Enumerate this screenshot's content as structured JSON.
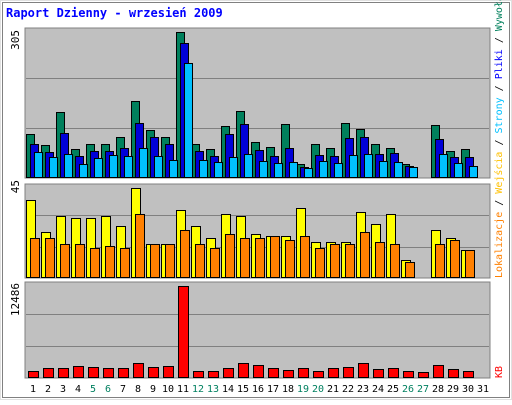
{
  "title": "Raport Dzienny -  wrzesień 2009",
  "colors": {
    "frame": "#e0e0e0",
    "panel": "#c0c0c0",
    "title": "#0000ff",
    "grid": "#808080",
    "wizyty": "#00805c",
    "strony": "#0000d8",
    "pliki": "#00c0ff",
    "wejscia": "#ffff00",
    "lokalizacje": "#ff8000",
    "kb": "#ff0000",
    "label_pliki": "#0000ff",
    "label_wejscia": "#ffc000",
    "label_lokalizacje": "#ff8000",
    "label_strony": "#00c0ff",
    "label_wywolania": "#00805c",
    "day_black": "#000000",
    "day_green": "#008060"
  },
  "chart_data": [
    {
      "type": "bar",
      "panel": "top",
      "y_max_label": "305",
      "ylim": [
        0,
        305
      ],
      "right_labels": [
        "Wywołania",
        "Pliki",
        "Strony"
      ],
      "x": [
        1,
        2,
        3,
        4,
        5,
        6,
        7,
        8,
        9,
        10,
        11,
        12,
        13,
        14,
        15,
        16,
        17,
        18,
        19,
        20,
        21,
        22,
        23,
        24,
        25,
        26,
        27,
        28,
        29,
        30,
        31
      ],
      "series": [
        {
          "name": "Wywołania",
          "color": "wizyty",
          "values": [
            92,
            68,
            137,
            60,
            72,
            70,
            85,
            160,
            100,
            86,
            305,
            70,
            60,
            108,
            140,
            76,
            65,
            113,
            30,
            70,
            62,
            115,
            103,
            70,
            63,
            30,
            0,
            110,
            57,
            60,
            0
          ]
        },
        {
          "name": "Pliki",
          "color": "strony",
          "values": [
            72,
            55,
            95,
            46,
            57,
            56,
            62,
            115,
            85,
            71,
            283,
            57,
            46,
            91,
            112,
            58,
            45,
            63,
            23,
            48,
            46,
            83,
            85,
            50,
            52,
            25,
            0,
            82,
            44,
            43,
            0
          ]
        },
        {
          "name": "Strony",
          "color": "pliki",
          "values": [
            55,
            44,
            51,
            30,
            41,
            49,
            45,
            63,
            47,
            38,
            241,
            38,
            33,
            43,
            51,
            36,
            32,
            34,
            21,
            35,
            32,
            49,
            50,
            36,
            34,
            23,
            0,
            51,
            31,
            25,
            0
          ]
        }
      ]
    },
    {
      "type": "bar",
      "panel": "middle",
      "y_max_label": "45",
      "ylim": [
        0,
        45
      ],
      "right_labels": [
        "Wejścia",
        "Lokalizacje"
      ],
      "x": [
        1,
        2,
        3,
        4,
        5,
        6,
        7,
        8,
        9,
        10,
        11,
        12,
        13,
        14,
        15,
        16,
        17,
        18,
        19,
        20,
        21,
        22,
        23,
        24,
        25,
        26,
        27,
        28,
        29,
        30,
        31
      ],
      "series": [
        {
          "name": "Wejścia",
          "color": "wejscia",
          "values": [
            39,
            23,
            31,
            30,
            30,
            31,
            26,
            45,
            17,
            17,
            34,
            26,
            20,
            32,
            31,
            22,
            21,
            21,
            35,
            18,
            18,
            18,
            33,
            27,
            32,
            9,
            0,
            24,
            20,
            14,
            0
          ]
        },
        {
          "name": "Lokalizacje",
          "color": "lokalizacje",
          "values": [
            20,
            20,
            17,
            17,
            15,
            16,
            15,
            32,
            17,
            17,
            24,
            17,
            15,
            22,
            20,
            20,
            21,
            19,
            21,
            15,
            17,
            17,
            23,
            18,
            17,
            8,
            0,
            17,
            19,
            14,
            0
          ]
        }
      ]
    },
    {
      "type": "bar",
      "panel": "bottom",
      "y_max_label": "12486",
      "ylim": [
        0,
        12486
      ],
      "right_labels": [
        "KB"
      ],
      "x": [
        1,
        2,
        3,
        4,
        5,
        6,
        7,
        8,
        9,
        10,
        11,
        12,
        13,
        14,
        15,
        16,
        17,
        18,
        19,
        20,
        21,
        22,
        23,
        24,
        25,
        26,
        27,
        28,
        29,
        30,
        31
      ],
      "series": [
        {
          "name": "KB",
          "color": "kb",
          "values": [
            1000,
            1400,
            1400,
            1600,
            1500,
            1300,
            1400,
            2000,
            1500,
            1600,
            12486,
            1000,
            1000,
            1400,
            2000,
            1700,
            1400,
            1100,
            1300,
            1000,
            1400,
            1500,
            2000,
            1200,
            1400,
            1000,
            800,
            1800,
            1200,
            1000,
            0
          ]
        }
      ]
    }
  ],
  "days": [
    {
      "label": "1",
      "color": "day_black"
    },
    {
      "label": "2",
      "color": "day_black"
    },
    {
      "label": "3",
      "color": "day_black"
    },
    {
      "label": "4",
      "color": "day_black"
    },
    {
      "label": "5",
      "color": "day_green"
    },
    {
      "label": "6",
      "color": "day_green"
    },
    {
      "label": "7",
      "color": "day_black"
    },
    {
      "label": "8",
      "color": "day_black"
    },
    {
      "label": "9",
      "color": "day_black"
    },
    {
      "label": "10",
      "color": "day_black"
    },
    {
      "label": "11",
      "color": "day_black"
    },
    {
      "label": "12",
      "color": "day_green"
    },
    {
      "label": "13",
      "color": "day_green"
    },
    {
      "label": "14",
      "color": "day_black"
    },
    {
      "label": "15",
      "color": "day_black"
    },
    {
      "label": "16",
      "color": "day_black"
    },
    {
      "label": "17",
      "color": "day_black"
    },
    {
      "label": "18",
      "color": "day_black"
    },
    {
      "label": "19",
      "color": "day_green"
    },
    {
      "label": "20",
      "color": "day_green"
    },
    {
      "label": "21",
      "color": "day_black"
    },
    {
      "label": "22",
      "color": "day_black"
    },
    {
      "label": "23",
      "color": "day_black"
    },
    {
      "label": "24",
      "color": "day_black"
    },
    {
      "label": "25",
      "color": "day_black"
    },
    {
      "label": "26",
      "color": "day_green"
    },
    {
      "label": "27",
      "color": "day_green"
    },
    {
      "label": "28",
      "color": "day_black"
    },
    {
      "label": "29",
      "color": "day_black"
    },
    {
      "label": "30",
      "color": "day_black"
    },
    {
      "label": "31",
      "color": "day_black"
    }
  ],
  "side_legend": {
    "upper": [
      {
        "text": "Lokalizacje",
        "color": "label_lokalizacje"
      },
      {
        "text": " / ",
        "color": "day_black"
      },
      {
        "text": "Wejścia",
        "color": "label_wejscia"
      },
      {
        "text": " / ",
        "color": "day_black"
      },
      {
        "text": "Strony",
        "color": "label_strony"
      },
      {
        "text": " / ",
        "color": "day_black"
      },
      {
        "text": "Pliki",
        "color": "label_pliki"
      },
      {
        "text": " / ",
        "color": "day_black"
      },
      {
        "text": "Wywołania",
        "color": "label_wywolania"
      }
    ],
    "lower": [
      {
        "text": "KB",
        "color": "kb"
      }
    ]
  }
}
